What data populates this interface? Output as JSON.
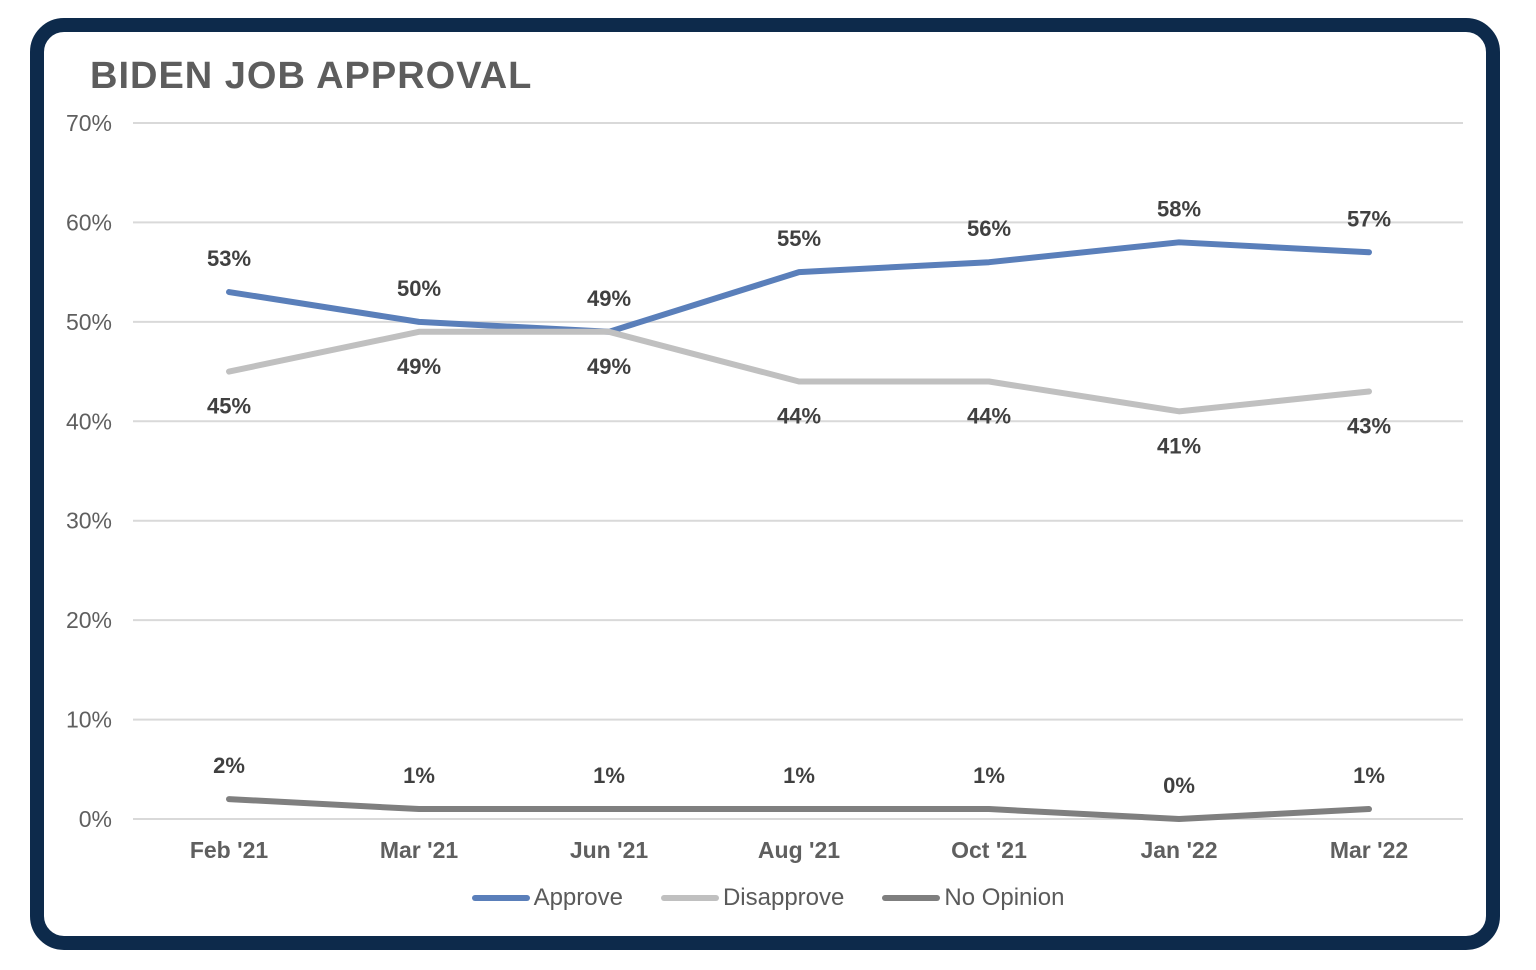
{
  "chart_data": {
    "type": "line",
    "title": "BIDEN JOB APPROVAL",
    "xlabel": "",
    "ylabel": "",
    "categories": [
      "Feb '21",
      "Mar '21",
      "Jun '21",
      "Aug '21",
      "Oct '21",
      "Jan '22",
      "Mar '22"
    ],
    "ylim": [
      0,
      70
    ],
    "yticks": [
      0,
      10,
      20,
      30,
      40,
      50,
      60,
      70
    ],
    "ytick_labels": [
      "0%",
      "10%",
      "20%",
      "30%",
      "40%",
      "50%",
      "60%",
      "70%"
    ],
    "grid": true,
    "legend_position": "bottom-center",
    "series": [
      {
        "name": "Approve",
        "color": "#5a7fba",
        "values": [
          53,
          50,
          49,
          55,
          56,
          58,
          57
        ],
        "labels": [
          "53%",
          "50%",
          "49%",
          "55%",
          "56%",
          "58%",
          "57%"
        ],
        "label_position": "above"
      },
      {
        "name": "Disapprove",
        "color": "#c0c0c0",
        "values": [
          45,
          49,
          49,
          44,
          44,
          41,
          43
        ],
        "labels": [
          "45%",
          "49%",
          "49%",
          "44%",
          "44%",
          "41%",
          "43%"
        ],
        "label_position": "below"
      },
      {
        "name": "No Opinion",
        "color": "#7f7f7f",
        "values": [
          2,
          1,
          1,
          1,
          1,
          0,
          1
        ],
        "labels": [
          "2%",
          "1%",
          "1%",
          "1%",
          "1%",
          "0%",
          "1%"
        ],
        "label_position": "above"
      }
    ]
  },
  "colors": {
    "frame": "#0d2a4b",
    "gridline": "#d9d9d9",
    "axis_text": "#5f5f5f"
  }
}
